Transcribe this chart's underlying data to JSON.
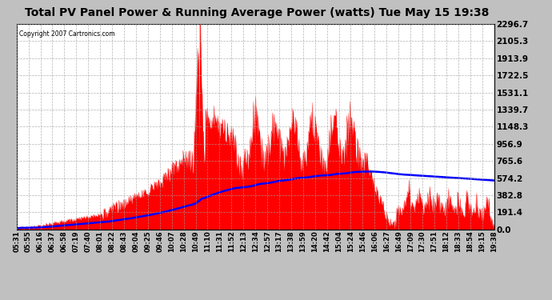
{
  "title": "Total PV Panel Power & Running Average Power (watts) Tue May 15 19:38",
  "copyright": "Copyright 2007 Cartronics.com",
  "background_color": "#c0c0c0",
  "plot_bg_color": "#ffffff",
  "y_ticks": [
    0.0,
    191.4,
    382.8,
    574.2,
    765.6,
    956.9,
    1148.3,
    1339.7,
    1531.1,
    1722.5,
    1913.9,
    2105.3,
    2296.7
  ],
  "x_labels": [
    "05:31",
    "05:55",
    "06:16",
    "06:37",
    "06:58",
    "07:19",
    "07:40",
    "08:01",
    "08:22",
    "08:43",
    "09:04",
    "09:25",
    "09:46",
    "10:07",
    "10:28",
    "10:49",
    "11:10",
    "11:31",
    "11:52",
    "12:13",
    "12:34",
    "12:57",
    "13:17",
    "13:38",
    "13:59",
    "14:20",
    "14:42",
    "15:04",
    "15:24",
    "15:46",
    "16:06",
    "16:27",
    "16:49",
    "17:09",
    "17:30",
    "17:51",
    "18:12",
    "18:33",
    "18:54",
    "19:15",
    "19:38"
  ],
  "fill_color": "#ff0000",
  "line_color": "#0000ff",
  "grid_color": "#a0a0a0",
  "title_fontsize": 10,
  "ylabel_fontsize": 7.5,
  "xlabel_fontsize": 6
}
